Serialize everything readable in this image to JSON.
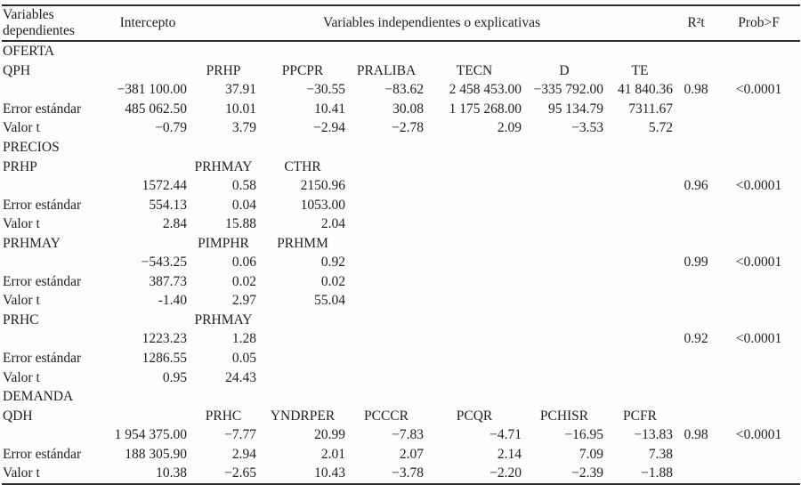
{
  "header": {
    "dependent": "Variables dependientes",
    "intercept": "Intercepto",
    "independent": "Variables independientes o explicativas",
    "r2": "R²t",
    "prob": "Prob>F"
  },
  "labels": {
    "stderr": "Error estándar",
    "tvalue": "Valor t"
  },
  "sections": [
    {
      "title": "OFERTA",
      "models": [
        {
          "dependent": "QPH",
          "regressors": [
            "PRHP",
            "PPCPR",
            "PRALIBA",
            "TECN",
            "D",
            "TE"
          ],
          "coef": {
            "intercept": "−381 100.00",
            "values": [
              "37.91",
              "−30.55",
              "−83.62",
              "2 458 453.00",
              "−335 792.00",
              "41 840.36"
            ],
            "r2": "0.98",
            "prob": "<0.0001"
          },
          "stderr": {
            "intercept": "485 062.50",
            "values": [
              "10.01",
              "10.41",
              "30.08",
              "1 175 268.00",
              "95 134.79",
              "7311.67"
            ]
          },
          "tvalue": {
            "intercept": "−0.79",
            "values": [
              "3.79",
              "−2.94",
              "−2.78",
              "2.09",
              "−3.53",
              "5.72"
            ]
          }
        }
      ]
    },
    {
      "title": "PRECIOS",
      "models": [
        {
          "dependent": "PRHP",
          "regressors": [
            "PRHMAY",
            "CTHR"
          ],
          "coef": {
            "intercept": "1572.44",
            "values": [
              "0.58",
              "2150.96"
            ],
            "r2": "0.96",
            "prob": "<0.0001"
          },
          "stderr": {
            "intercept": "554.13",
            "values": [
              "0.04",
              "1053.00"
            ]
          },
          "tvalue": {
            "intercept": "2.84",
            "values": [
              "15.88",
              "2.04"
            ]
          }
        },
        {
          "dependent": "PRHMAY",
          "regressors": [
            "PIMPHR",
            "PRHMM"
          ],
          "coef": {
            "intercept": "−543.25",
            "values": [
              "0.06",
              "0.92"
            ],
            "r2": "0.99",
            "prob": "<0.0001"
          },
          "stderr": {
            "intercept": "387.73",
            "values": [
              "0.02",
              "0.02"
            ]
          },
          "tvalue": {
            "intercept": "-1.40",
            "values": [
              "2.97",
              "55.04"
            ]
          }
        },
        {
          "dependent": "PRHC",
          "regressors": [
            "PRHMAY"
          ],
          "coef": {
            "intercept": "1223.23",
            "values": [
              "1.28"
            ],
            "r2": "0.92",
            "prob": "<0.0001"
          },
          "stderr": {
            "intercept": "1286.55",
            "values": [
              "0.05"
            ]
          },
          "tvalue": {
            "intercept": "0.95",
            "values": [
              "24.43"
            ]
          }
        }
      ]
    },
    {
      "title": "DEMANDA",
      "models": [
        {
          "dependent": "QDH",
          "regressors": [
            "PRHC",
            "YNDRPER",
            "PCCCR",
            "PCQR",
            "PCHISR",
            "PCFR"
          ],
          "coef": {
            "intercept": "1 954 375.00",
            "values": [
              "−7.77",
              "20.99",
              "−7.83",
              "−4.71",
              "−16.95",
              "−13.83"
            ],
            "r2": "0.98",
            "prob": "<0.0001"
          },
          "stderr": {
            "intercept": "188 305.90",
            "values": [
              "2.94",
              "2.01",
              "2.07",
              "2.14",
              "7.09",
              "7.38"
            ]
          },
          "tvalue": {
            "intercept": "10.38",
            "values": [
              "−2.65",
              "10.43",
              "−3.78",
              "−2.20",
              "−2.39",
              "−1.88"
            ]
          }
        }
      ]
    }
  ]
}
